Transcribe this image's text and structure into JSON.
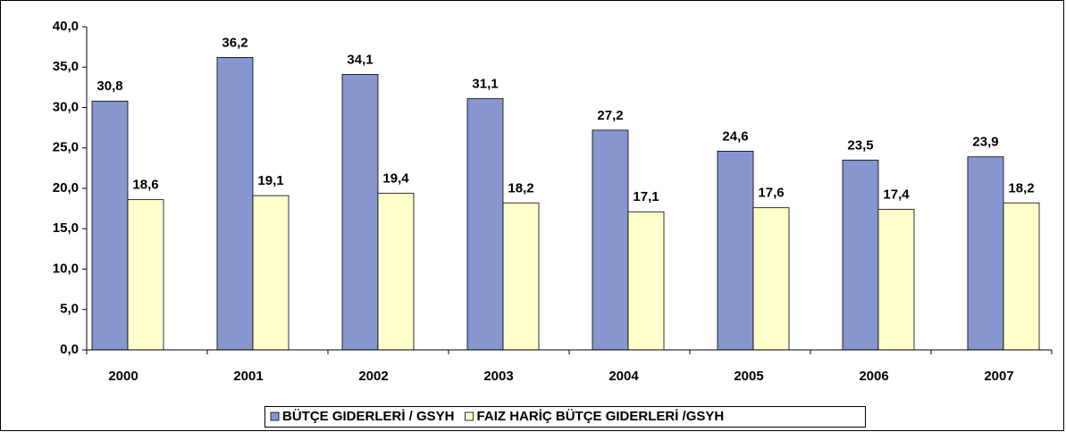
{
  "chart_data": {
    "type": "bar",
    "categories": [
      "2000",
      "2001",
      "2002",
      "2003",
      "2004",
      "2005",
      "2006",
      "2007"
    ],
    "series": [
      {
        "name": "BÜTÇE GIDERLERİ / GSYH",
        "color": "#8896d0",
        "values": [
          30.8,
          36.2,
          34.1,
          31.1,
          27.2,
          24.6,
          23.5,
          23.9
        ],
        "value_labels": [
          "30,8",
          "36,2",
          "34,1",
          "31,1",
          "27,2",
          "24,6",
          "23,5",
          "23,9"
        ]
      },
      {
        "name": "FAIZ HARİÇ BÜTÇE GIDERLERİ /GSYH",
        "color": "#ffffcc",
        "values": [
          18.6,
          19.1,
          19.4,
          18.2,
          17.1,
          17.6,
          17.4,
          18.2
        ],
        "value_labels": [
          "18,6",
          "19,1",
          "19,4",
          "18,2",
          "17,1",
          "17,6",
          "17,4",
          "18,2"
        ]
      }
    ],
    "ylim": [
      0,
      40
    ],
    "yticks": [
      {
        "value": 0,
        "label": "0,0"
      },
      {
        "value": 5,
        "label": "5,0"
      },
      {
        "value": 10,
        "label": "10,0"
      },
      {
        "value": 15,
        "label": "15,0"
      },
      {
        "value": 20,
        "label": "20,0"
      },
      {
        "value": 25,
        "label": "25,0"
      },
      {
        "value": 30,
        "label": "30,0"
      },
      {
        "value": 35,
        "label": "35,0"
      },
      {
        "value": 40,
        "label": "40,0"
      }
    ],
    "legend": "bottom"
  }
}
